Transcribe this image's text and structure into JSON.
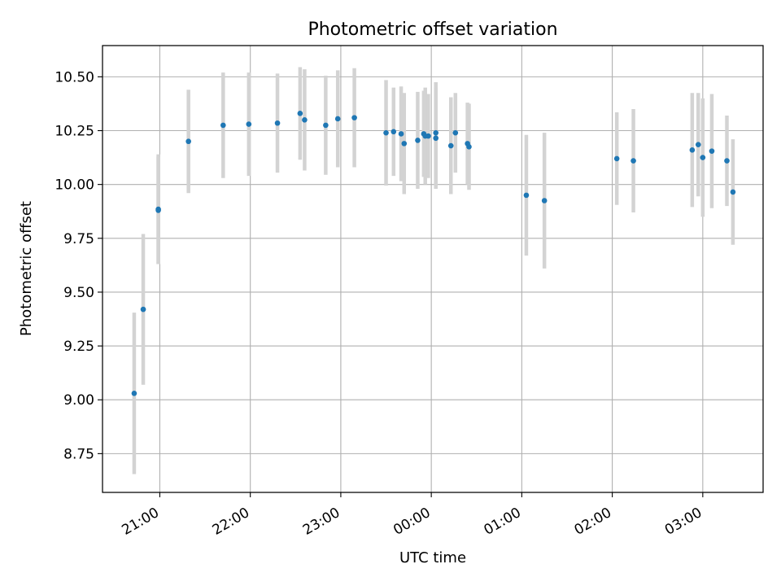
{
  "chart_data": {
    "type": "scatter",
    "title": "Photometric offset variation",
    "xlabel": "UTC time",
    "ylabel": "Photometric offset",
    "x_ticks": [
      "21:00",
      "22:00",
      "23:00",
      "00:00",
      "01:00",
      "02:00",
      "03:00"
    ],
    "y_ticks": [
      "8.75",
      "9.00",
      "9.25",
      "9.50",
      "9.75",
      "10.00",
      "10.25",
      "10.50"
    ],
    "xlim": [
      "20:22",
      "03:40"
    ],
    "ylim": [
      8.57,
      10.645
    ],
    "grid": true,
    "colors": {
      "point": "#1f77b4",
      "errorbar": "#d3d3d3",
      "grid": "#b0b0b0"
    },
    "points": [
      {
        "x": "20:43",
        "y": 9.03,
        "err": 0.375
      },
      {
        "x": "20:49",
        "y": 9.42,
        "err": 0.35
      },
      {
        "x": "20:59",
        "y": 9.885,
        "err": 0.255
      },
      {
        "x": "20:59",
        "y": 9.88,
        "err": 0.25
      },
      {
        "x": "21:19",
        "y": 10.2,
        "err": 0.24
      },
      {
        "x": "21:42",
        "y": 10.275,
        "err": 0.245
      },
      {
        "x": "21:59",
        "y": 10.28,
        "err": 0.24
      },
      {
        "x": "22:18",
        "y": 10.285,
        "err": 0.23
      },
      {
        "x": "22:33",
        "y": 10.33,
        "err": 0.215
      },
      {
        "x": "22:36",
        "y": 10.3,
        "err": 0.235
      },
      {
        "x": "22:50",
        "y": 10.275,
        "err": 0.23
      },
      {
        "x": "22:58",
        "y": 10.305,
        "err": 0.225
      },
      {
        "x": "23:09",
        "y": 10.31,
        "err": 0.23
      },
      {
        "x": "23:30",
        "y": 10.24,
        "err": 0.245
      },
      {
        "x": "23:35",
        "y": 10.245,
        "err": 0.205
      },
      {
        "x": "23:40",
        "y": 10.235,
        "err": 0.22
      },
      {
        "x": "23:42",
        "y": 10.19,
        "err": 0.235
      },
      {
        "x": "23:51",
        "y": 10.205,
        "err": 0.225
      },
      {
        "x": "23:55",
        "y": 10.235,
        "err": 0.2
      },
      {
        "x": "23:56",
        "y": 10.225,
        "err": 0.225
      },
      {
        "x": "23:58",
        "y": 10.225,
        "err": 0.195
      },
      {
        "x": "00:03",
        "y": 10.215,
        "err": 0.235
      },
      {
        "x": "00:03",
        "y": 10.24,
        "err": 0.235
      },
      {
        "x": "00:13",
        "y": 10.18,
        "err": 0.225
      },
      {
        "x": "00:16",
        "y": 10.24,
        "err": 0.185
      },
      {
        "x": "00:24",
        "y": 10.19,
        "err": 0.19
      },
      {
        "x": "00:25",
        "y": 10.175,
        "err": 0.2
      },
      {
        "x": "01:03",
        "y": 9.95,
        "err": 0.28
      },
      {
        "x": "01:15",
        "y": 9.925,
        "err": 0.315
      },
      {
        "x": "02:03",
        "y": 10.12,
        "err": 0.215
      },
      {
        "x": "02:14",
        "y": 10.11,
        "err": 0.24
      },
      {
        "x": "02:53",
        "y": 10.16,
        "err": 0.265
      },
      {
        "x": "02:57",
        "y": 10.185,
        "err": 0.24
      },
      {
        "x": "03:00",
        "y": 10.125,
        "err": 0.275
      },
      {
        "x": "03:06",
        "y": 10.155,
        "err": 0.265
      },
      {
        "x": "03:16",
        "y": 10.11,
        "err": 0.21
      },
      {
        "x": "03:20",
        "y": 9.965,
        "err": 0.245
      }
    ]
  }
}
